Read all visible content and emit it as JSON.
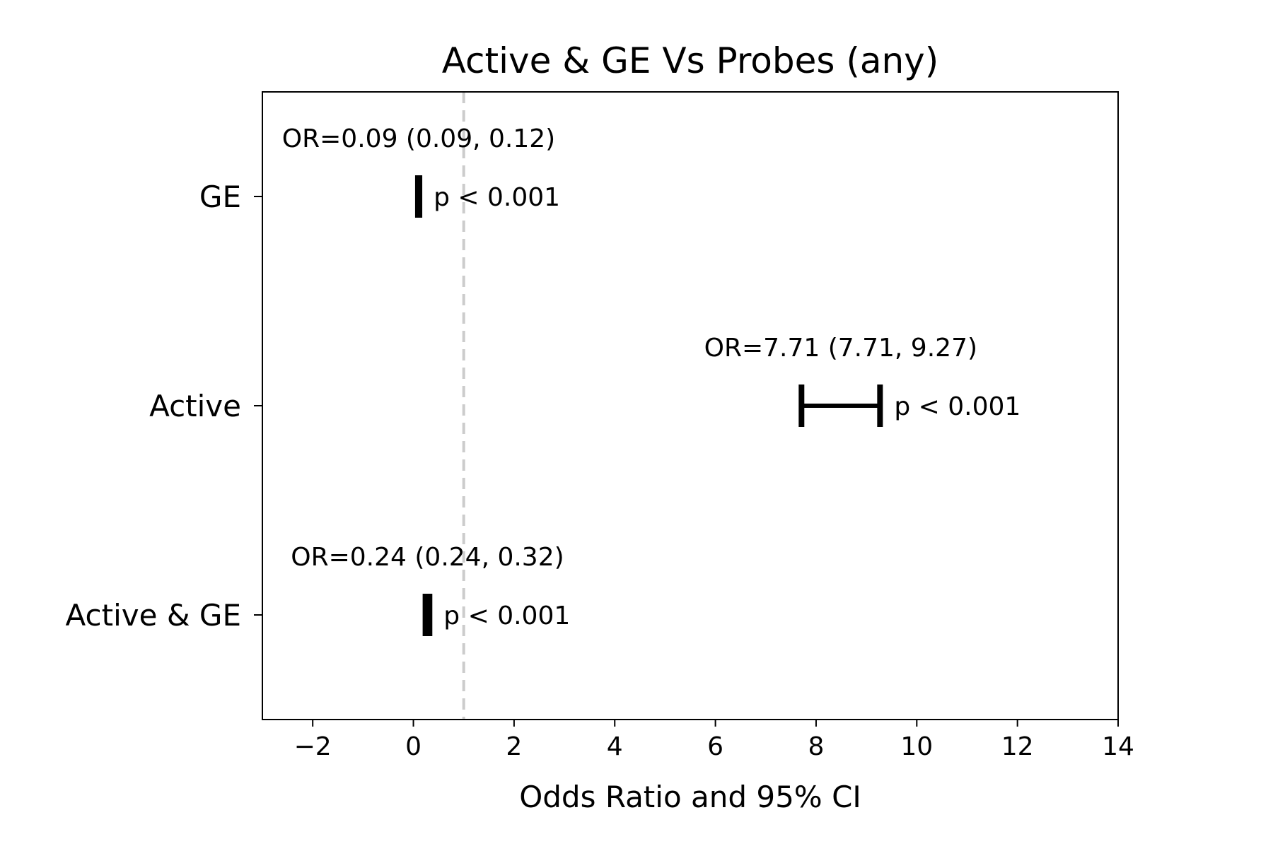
{
  "chart_data": {
    "type": "forest",
    "title": "Active & GE Vs Probes (any)",
    "xlabel": "Odds Ratio and 95% CI",
    "ylabel": "",
    "xlim": [
      -3,
      14
    ],
    "xticks": [
      -2,
      0,
      2,
      4,
      6,
      8,
      10,
      12,
      14
    ],
    "xtick_labels": [
      "−2",
      "0",
      "2",
      "4",
      "6",
      "8",
      "10",
      "12",
      "14"
    ],
    "reference_line": {
      "x": 1,
      "style": "dashed",
      "color": "#cccccc"
    },
    "grid": false,
    "legend": "none",
    "rows": [
      {
        "label": "GE",
        "or": 0.09,
        "ci_low": 0.09,
        "ci_high": 0.12,
        "or_text": "OR=0.09 (0.09, 0.12)",
        "p_text": "p < 0.001"
      },
      {
        "label": "Active",
        "or": 7.71,
        "ci_low": 7.71,
        "ci_high": 9.27,
        "or_text": "OR=7.71 (7.71, 9.27)",
        "p_text": "p < 0.001"
      },
      {
        "label": "Active & GE",
        "or": 0.24,
        "ci_low": 0.24,
        "ci_high": 0.32,
        "or_text": "OR=0.24 (0.24, 0.32)",
        "p_text": "p < 0.001"
      }
    ]
  }
}
